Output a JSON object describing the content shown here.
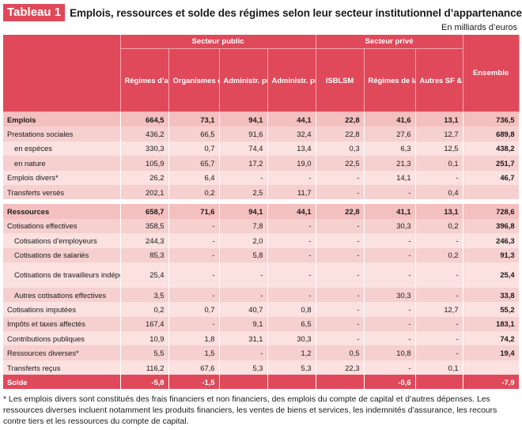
{
  "header": {
    "tag": "Tableau 1",
    "title": "Emplois, ressources et solde des régimes selon leur secteur institutionnel d’appartenance",
    "units": "En milliards d’euros"
  },
  "groups": {
    "public": "Secteur public",
    "prive": "Secteur privé"
  },
  "columns": [
    "Régimes d’assurances sociales",
    "Organismes dépendant des assurances sociales",
    "Administr. publique centrale",
    "Administr. publiques locales",
    "ISBLSM",
    "Régimes de la mutualité et de la prévoyance",
    "Autres SF & SNF",
    "Ensemble"
  ],
  "rows": [
    {
      "label": "Emplois",
      "v": [
        "664,5",
        "73,1",
        "94,1",
        "44,1",
        "22,8",
        "41,6",
        "13,1",
        "736,5"
      ]
    },
    {
      "label": "Prestations sociales",
      "v": [
        "436,2",
        "66,5",
        "91,6",
        "32,4",
        "22,8",
        "27,6",
        "12,7",
        "689,8"
      ]
    },
    {
      "label": "en espèces",
      "v": [
        "330,3",
        "0,7",
        "74,4",
        "13,4",
        "0,3",
        "6,3",
        "12,5",
        "438,2"
      ]
    },
    {
      "label": "en nature",
      "v": [
        "105,9",
        "65,7",
        "17,2",
        "19,0",
        "22,5",
        "21,3",
        "0,1",
        "251,7"
      ]
    },
    {
      "label": "Emplois divers*",
      "v": [
        "26,2",
        "6,4",
        "-",
        "-",
        "-",
        "14,1",
        "-",
        "46,7"
      ]
    },
    {
      "label": "Transferts versés",
      "v": [
        "202,1",
        "0,2",
        "2,5",
        "11,7",
        "-",
        "-",
        "0,4",
        ""
      ]
    },
    {
      "label": "Ressources",
      "v": [
        "658,7",
        "71,6",
        "94,1",
        "44,1",
        "22,8",
        "41,1",
        "13,1",
        "728,6"
      ]
    },
    {
      "label": "Cotisations effectives",
      "v": [
        "358,5",
        "-",
        "7,8",
        "-",
        "-",
        "30,3",
        "0,2",
        "396,8"
      ]
    },
    {
      "label": "Cotisations d’employeurs",
      "v": [
        "244,3",
        "-",
        "2,0",
        "-",
        "-",
        "-",
        "-",
        "246,3"
      ]
    },
    {
      "label": "Cotisations de salariés",
      "v": [
        "85,3",
        "-",
        "5,8",
        "-",
        "-",
        "-",
        "0,2",
        "91,3"
      ]
    },
    {
      "label": "Cotisations de travailleurs indépendants",
      "v": [
        "25,4",
        "-",
        "-",
        "-",
        "-",
        "-",
        "-",
        "25,4"
      ]
    },
    {
      "label": "Autres cotisations effectives",
      "v": [
        "3,5",
        "-",
        "-",
        "-",
        "-",
        "30,3",
        "-",
        "33,8"
      ]
    },
    {
      "label": "Cotisations imputées",
      "v": [
        "0,2",
        "0,7",
        "40,7",
        "0,8",
        "-",
        "-",
        "12,7",
        "55,2"
      ]
    },
    {
      "label": "Impôts et taxes affectés",
      "v": [
        "167,4",
        "-",
        "9,1",
        "6,5",
        "-",
        "-",
        "-",
        "183,1"
      ]
    },
    {
      "label": "Contributions publiques",
      "v": [
        "10,9",
        "1,8",
        "31,1",
        "30,3",
        "-",
        "-",
        "-",
        "74,2"
      ]
    },
    {
      "label": "Ressources diverses*",
      "v": [
        "5,5",
        "1,5",
        "-",
        "1,2",
        "0,5",
        "10,8",
        "-",
        "19,4"
      ]
    },
    {
      "label": "Transferts reçus",
      "v": [
        "116,2",
        "67,6",
        "5,3",
        "5,3",
        "22,3",
        "-",
        "0,1",
        ""
      ]
    },
    {
      "label": "Solde",
      "v": [
        "-5,8",
        "-1,5",
        "",
        "",
        "",
        "-0,6",
        "",
        "-7,9"
      ]
    }
  ],
  "footnote": "* Les emplois divers sont constitués des frais financiers et non financiers, des emplois du compte de capital et d’autres dépenses. Les ressources diverses incluent notamment les produits financiers, les ventes de biens et services, les indemnités d’assurance, les recours contre tiers et les ressources du compte de capital.",
  "colors": {
    "accent": "#e0495a",
    "row_light": "#fbe1e0",
    "row_dark": "#f5d0cf"
  }
}
